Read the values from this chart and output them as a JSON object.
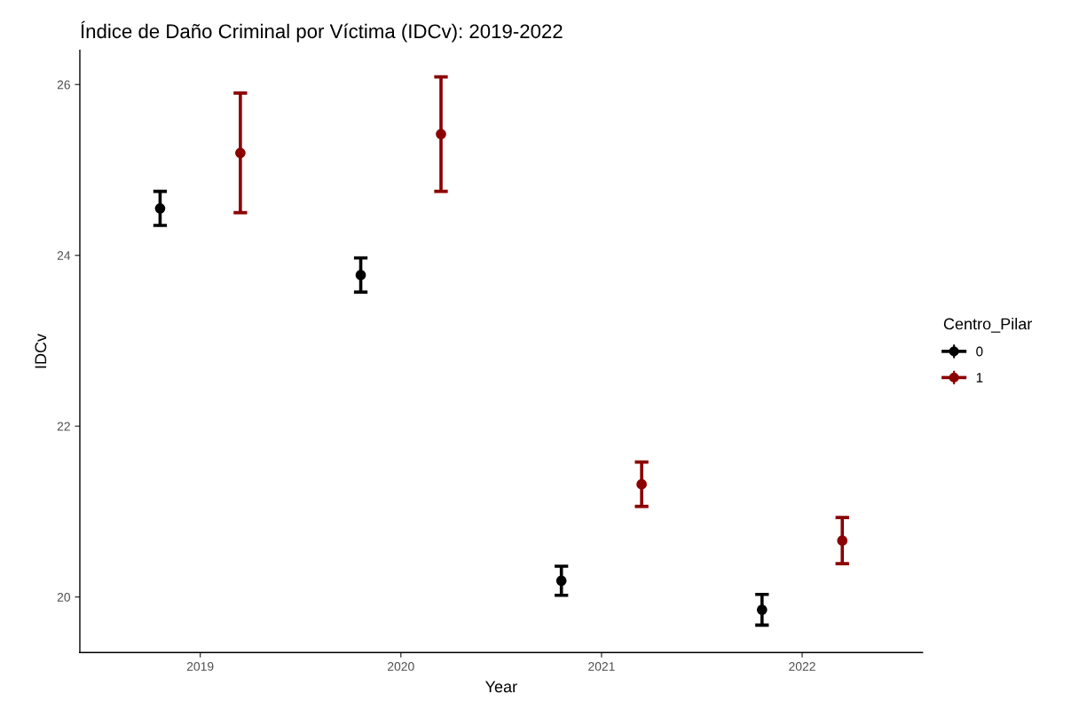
{
  "chart_data": {
    "type": "scatter",
    "title": "Índice de Daño Criminal por Víctima (IDCv): 2019-2022",
    "xlabel": "Year",
    "ylabel": "IDCv",
    "legend_title": "Centro_Pilar",
    "categories": [
      "2019",
      "2020",
      "2021",
      "2022"
    ],
    "series": [
      {
        "name": "0",
        "color": "#000000",
        "values": [
          24.55,
          23.77,
          20.19,
          19.85
        ],
        "errors": [
          0.2,
          0.2,
          0.17,
          0.18
        ]
      },
      {
        "name": "1",
        "color": "#8b0000",
        "values": [
          25.2,
          25.42,
          21.32,
          20.66
        ],
        "errors": [
          0.7,
          0.67,
          0.26,
          0.27
        ]
      }
    ],
    "ylim": [
      19.35,
      26.4
    ],
    "yticks": [
      20,
      22,
      24,
      26
    ],
    "grid": false,
    "legend": "right",
    "marker": "circle"
  }
}
